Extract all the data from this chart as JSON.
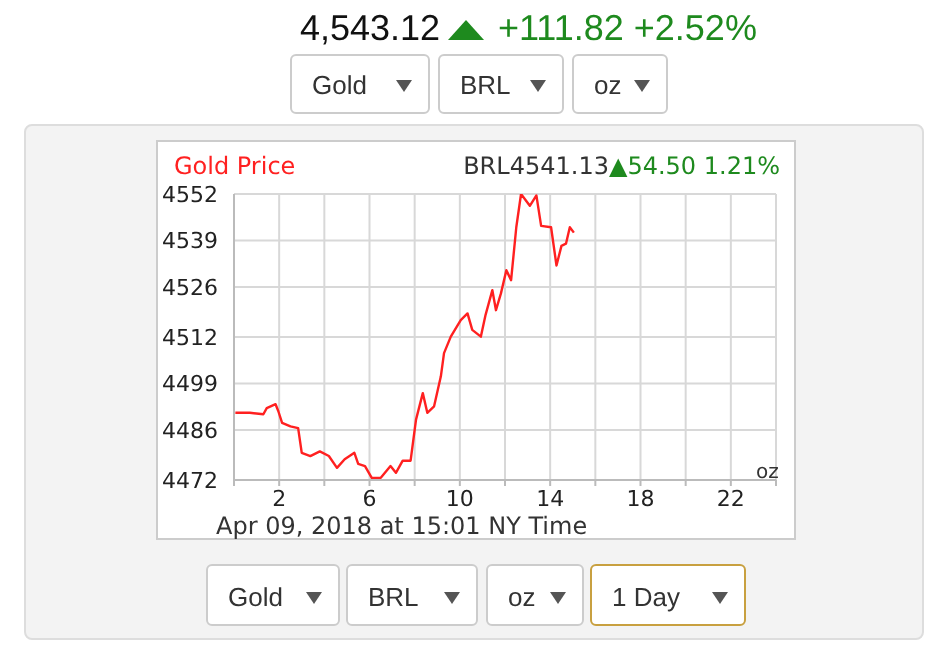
{
  "chart_data": {
    "type": "line",
    "title": "Gold Price",
    "subtitle": "BRL4541.13▲54.50 1.21%",
    "annotations": [
      "4,543.12",
      "+111.82 +2.52%",
      "Gold",
      "BRL",
      "oz",
      "Apr 09, 2018 at 15:01 NY Time",
      "oz",
      "Gold",
      "BRL",
      "oz",
      "1 Day"
    ],
    "series": [
      {
        "color": "#ff2020",
        "x": [
          0.06,
          0.7,
          1.3,
          1.45,
          1.84,
          1.96,
          2.13,
          2.5,
          2.84,
          3.0,
          3.38,
          3.8,
          4.2,
          4.56,
          4.9,
          5.33,
          5.5,
          5.8,
          6.1,
          6.5,
          6.93,
          7.17,
          7.47,
          7.82,
          8.06,
          8.36,
          8.56,
          8.86,
          9.16,
          9.3,
          9.6,
          10.04,
          10.34,
          10.55,
          10.93,
          11.14,
          11.44,
          11.6,
          11.82,
          12.06,
          12.27,
          12.5,
          12.71,
          13.1,
          13.39,
          13.6,
          14.04,
          14.28,
          14.5,
          14.7,
          14.87,
          15.05
        ],
        "values": [
          4490.8,
          4490.8,
          4490.4,
          4492.1,
          4493.2,
          4491.3,
          4488,
          4487,
          4486.5,
          4479.6,
          4478.7,
          4480,
          4478.7,
          4475.4,
          4477.8,
          4479.6,
          4476.5,
          4475.9,
          4472.6,
          4472.6,
          4475.9,
          4474,
          4477.4,
          4477.4,
          4488.9,
          4496.3,
          4490.8,
          4492.6,
          4501,
          4507.5,
          4512.1,
          4516.7,
          4518.6,
          4514,
          4512.1,
          4518.2,
          4525.1,
          4519.5,
          4524.2,
          4530.7,
          4527.9,
          4542.7,
          4552,
          4548.7,
          4551.6,
          4543.1,
          4542.7,
          4532,
          4537.5,
          4538.1,
          4542.7,
          4541.2
        ]
      }
    ],
    "xlim": [
      0,
      24
    ],
    "xticks": [
      {
        "value": 0,
        "label": null
      },
      2,
      {
        "value": 4,
        "label": null
      },
      6,
      {
        "value": 8,
        "label": null
      },
      10,
      {
        "value": 12,
        "label": null
      },
      14,
      {
        "value": 16,
        "label": null
      },
      18,
      {
        "value": 20,
        "label": null
      },
      22,
      {
        "value": 24,
        "label": null
      }
    ],
    "ylim": [
      4472,
      4552
    ],
    "yticks": [
      4472,
      4486,
      4499,
      4512,
      4526,
      4539,
      4552
    ],
    "grid": true,
    "marker": "none",
    "line_style": "solid"
  }
}
